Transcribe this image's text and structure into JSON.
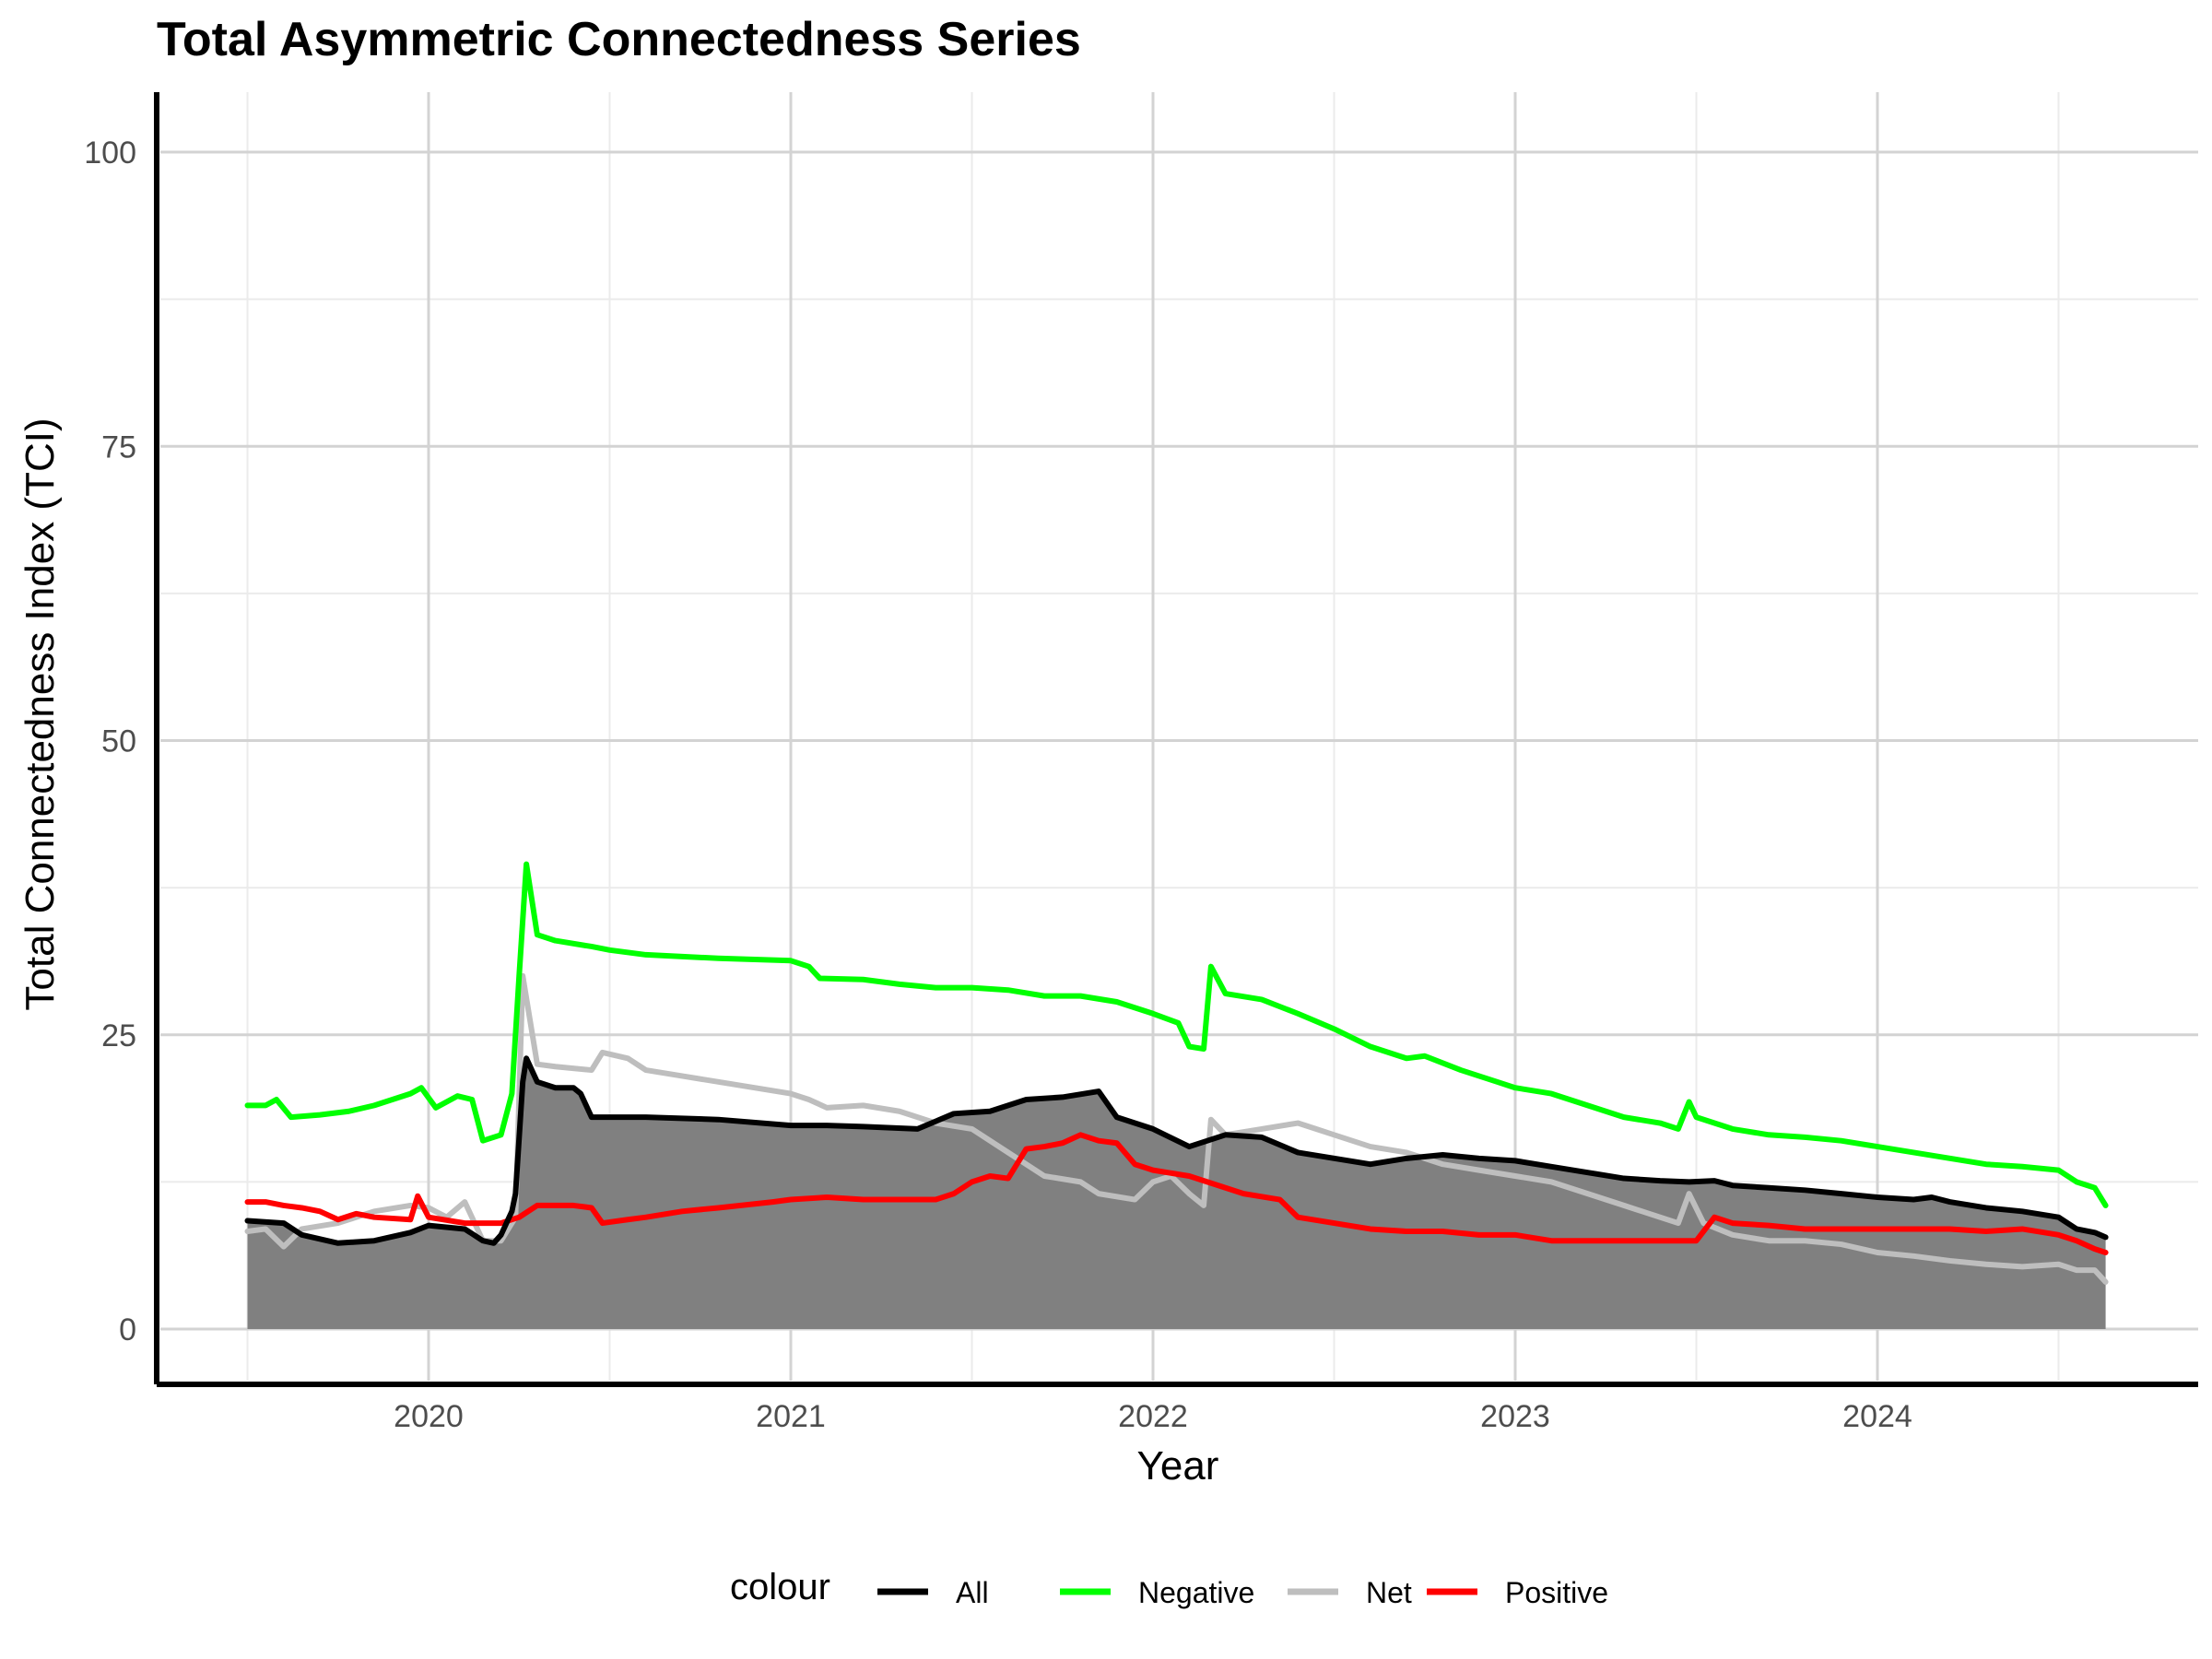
{
  "chart_data": {
    "type": "line",
    "title": "Total Asymmetric Connectedness Series",
    "xlabel": "Year",
    "ylabel": "Total Connectedness Index (TCI)",
    "xlim": [
      2019.5,
      2024.63
    ],
    "ylim": [
      0,
      100
    ],
    "xticks": [
      {
        "value": 2020,
        "label": "2020"
      },
      {
        "value": 2021,
        "label": "2021"
      },
      {
        "value": 2022,
        "label": "2022"
      },
      {
        "value": 2023,
        "label": "2023"
      },
      {
        "value": 2024,
        "label": "2024"
      }
    ],
    "yticks": [
      {
        "value": 0,
        "label": "0"
      },
      {
        "value": 25,
        "label": "25"
      },
      {
        "value": 50,
        "label": "50"
      },
      {
        "value": 75,
        "label": "75"
      },
      {
        "value": 100,
        "label": "100"
      }
    ],
    "grid": true,
    "legend": {
      "title": "colour",
      "position": "bottom"
    },
    "area_series": "All",
    "area_color": "#808080",
    "series": [
      {
        "name": "All",
        "color": "#000000",
        "points": [
          [
            2019.5,
            9.2
          ],
          [
            2019.6,
            9.0
          ],
          [
            2019.65,
            8.0
          ],
          [
            2019.75,
            7.3
          ],
          [
            2019.85,
            7.5
          ],
          [
            2019.95,
            8.2
          ],
          [
            2020.0,
            8.8
          ],
          [
            2020.1,
            8.5
          ],
          [
            2020.15,
            7.5
          ],
          [
            2020.18,
            7.3
          ],
          [
            2020.2,
            8.0
          ],
          [
            2020.23,
            10.0
          ],
          [
            2020.24,
            11.5
          ],
          [
            2020.26,
            21.0
          ],
          [
            2020.27,
            23.0
          ],
          [
            2020.3,
            21.0
          ],
          [
            2020.35,
            20.5
          ],
          [
            2020.4,
            20.5
          ],
          [
            2020.42,
            20.0
          ],
          [
            2020.45,
            18.0
          ],
          [
            2020.6,
            18.0
          ],
          [
            2020.8,
            17.8
          ],
          [
            2021.0,
            17.3
          ],
          [
            2021.1,
            17.3
          ],
          [
            2021.2,
            17.2
          ],
          [
            2021.35,
            17.0
          ],
          [
            2021.45,
            18.3
          ],
          [
            2021.55,
            18.5
          ],
          [
            2021.65,
            19.5
          ],
          [
            2021.75,
            19.7
          ],
          [
            2021.85,
            20.2
          ],
          [
            2021.9,
            18.0
          ],
          [
            2022.0,
            17.0
          ],
          [
            2022.1,
            15.5
          ],
          [
            2022.15,
            16.0
          ],
          [
            2022.2,
            16.5
          ],
          [
            2022.3,
            16.3
          ],
          [
            2022.4,
            15.0
          ],
          [
            2022.5,
            14.5
          ],
          [
            2022.6,
            14.0
          ],
          [
            2022.7,
            14.5
          ],
          [
            2022.8,
            14.8
          ],
          [
            2022.9,
            14.5
          ],
          [
            2023.0,
            14.3
          ],
          [
            2023.1,
            13.8
          ],
          [
            2023.2,
            13.3
          ],
          [
            2023.3,
            12.8
          ],
          [
            2023.4,
            12.6
          ],
          [
            2023.48,
            12.5
          ],
          [
            2023.55,
            12.6
          ],
          [
            2023.6,
            12.2
          ],
          [
            2023.7,
            12.0
          ],
          [
            2023.8,
            11.8
          ],
          [
            2023.9,
            11.5
          ],
          [
            2024.0,
            11.2
          ],
          [
            2024.1,
            11.0
          ],
          [
            2024.15,
            11.2
          ],
          [
            2024.2,
            10.8
          ],
          [
            2024.3,
            10.3
          ],
          [
            2024.4,
            10.0
          ],
          [
            2024.5,
            9.5
          ],
          [
            2024.55,
            8.5
          ],
          [
            2024.6,
            8.2
          ],
          [
            2024.63,
            7.8
          ]
        ]
      },
      {
        "name": "Negative",
        "color": "#00ff00",
        "points": [
          [
            2019.5,
            19.0
          ],
          [
            2019.55,
            19.0
          ],
          [
            2019.58,
            19.5
          ],
          [
            2019.62,
            18.0
          ],
          [
            2019.7,
            18.2
          ],
          [
            2019.78,
            18.5
          ],
          [
            2019.85,
            19.0
          ],
          [
            2019.95,
            20.0
          ],
          [
            2019.98,
            20.5
          ],
          [
            2020.02,
            18.8
          ],
          [
            2020.08,
            19.8
          ],
          [
            2020.12,
            19.5
          ],
          [
            2020.15,
            16.0
          ],
          [
            2020.2,
            16.5
          ],
          [
            2020.23,
            20.0
          ],
          [
            2020.25,
            30.0
          ],
          [
            2020.27,
            39.5
          ],
          [
            2020.3,
            33.5
          ],
          [
            2020.35,
            33.0
          ],
          [
            2020.45,
            32.5
          ],
          [
            2020.5,
            32.2
          ],
          [
            2020.6,
            31.8
          ],
          [
            2020.8,
            31.5
          ],
          [
            2021.0,
            31.3
          ],
          [
            2021.05,
            30.8
          ],
          [
            2021.08,
            29.8
          ],
          [
            2021.2,
            29.7
          ],
          [
            2021.3,
            29.3
          ],
          [
            2021.4,
            29.0
          ],
          [
            2021.5,
            29.0
          ],
          [
            2021.6,
            28.8
          ],
          [
            2021.7,
            28.3
          ],
          [
            2021.8,
            28.3
          ],
          [
            2021.9,
            27.8
          ],
          [
            2022.0,
            26.8
          ],
          [
            2022.07,
            26.0
          ],
          [
            2022.1,
            24.0
          ],
          [
            2022.14,
            23.8
          ],
          [
            2022.16,
            30.8
          ],
          [
            2022.2,
            28.5
          ],
          [
            2022.3,
            28.0
          ],
          [
            2022.4,
            26.8
          ],
          [
            2022.5,
            25.5
          ],
          [
            2022.6,
            24.0
          ],
          [
            2022.7,
            23.0
          ],
          [
            2022.75,
            23.2
          ],
          [
            2022.85,
            22.0
          ],
          [
            2022.95,
            21.0
          ],
          [
            2023.0,
            20.5
          ],
          [
            2023.1,
            20.0
          ],
          [
            2023.2,
            19.0
          ],
          [
            2023.3,
            18.0
          ],
          [
            2023.4,
            17.5
          ],
          [
            2023.45,
            17.0
          ],
          [
            2023.48,
            19.3
          ],
          [
            2023.5,
            18.0
          ],
          [
            2023.55,
            17.5
          ],
          [
            2023.6,
            17.0
          ],
          [
            2023.7,
            16.5
          ],
          [
            2023.8,
            16.3
          ],
          [
            2023.9,
            16.0
          ],
          [
            2024.0,
            15.5
          ],
          [
            2024.1,
            15.0
          ],
          [
            2024.2,
            14.5
          ],
          [
            2024.3,
            14.0
          ],
          [
            2024.4,
            13.8
          ],
          [
            2024.5,
            13.5
          ],
          [
            2024.55,
            12.5
          ],
          [
            2024.6,
            12.0
          ],
          [
            2024.63,
            10.5
          ]
        ]
      },
      {
        "name": "Net",
        "color": "#bebebe",
        "points": [
          [
            2019.5,
            8.3
          ],
          [
            2019.55,
            8.5
          ],
          [
            2019.6,
            7.0
          ],
          [
            2019.65,
            8.5
          ],
          [
            2019.75,
            9.0
          ],
          [
            2019.85,
            10.0
          ],
          [
            2019.95,
            10.5
          ],
          [
            2020.0,
            10.3
          ],
          [
            2020.05,
            9.5
          ],
          [
            2020.1,
            10.8
          ],
          [
            2020.15,
            7.5
          ],
          [
            2020.2,
            7.5
          ],
          [
            2020.24,
            9.5
          ],
          [
            2020.26,
            30.0
          ],
          [
            2020.3,
            22.5
          ],
          [
            2020.35,
            22.3
          ],
          [
            2020.45,
            22.0
          ],
          [
            2020.48,
            23.5
          ],
          [
            2020.55,
            23.0
          ],
          [
            2020.6,
            22.0
          ],
          [
            2020.7,
            21.5
          ],
          [
            2020.8,
            21.0
          ],
          [
            2021.0,
            20.0
          ],
          [
            2021.05,
            19.5
          ],
          [
            2021.1,
            18.8
          ],
          [
            2021.2,
            19.0
          ],
          [
            2021.3,
            18.5
          ],
          [
            2021.4,
            17.5
          ],
          [
            2021.5,
            17.0
          ],
          [
            2021.6,
            15.0
          ],
          [
            2021.7,
            13.0
          ],
          [
            2021.8,
            12.5
          ],
          [
            2021.85,
            11.5
          ],
          [
            2021.95,
            11.0
          ],
          [
            2022.0,
            12.5
          ],
          [
            2022.05,
            13.0
          ],
          [
            2022.1,
            11.5
          ],
          [
            2022.14,
            10.5
          ],
          [
            2022.16,
            17.8
          ],
          [
            2022.2,
            16.5
          ],
          [
            2022.3,
            17.0
          ],
          [
            2022.4,
            17.5
          ],
          [
            2022.45,
            17.0
          ],
          [
            2022.5,
            16.5
          ],
          [
            2022.6,
            15.5
          ],
          [
            2022.7,
            15.0
          ],
          [
            2022.8,
            14.0
          ],
          [
            2022.9,
            13.5
          ],
          [
            2023.0,
            13.0
          ],
          [
            2023.1,
            12.5
          ],
          [
            2023.2,
            11.5
          ],
          [
            2023.3,
            10.5
          ],
          [
            2023.4,
            9.5
          ],
          [
            2023.45,
            9.0
          ],
          [
            2023.48,
            11.5
          ],
          [
            2023.52,
            9.0
          ],
          [
            2023.6,
            8.0
          ],
          [
            2023.7,
            7.5
          ],
          [
            2023.8,
            7.5
          ],
          [
            2023.9,
            7.2
          ],
          [
            2024.0,
            6.5
          ],
          [
            2024.1,
            6.2
          ],
          [
            2024.2,
            5.8
          ],
          [
            2024.3,
            5.5
          ],
          [
            2024.4,
            5.3
          ],
          [
            2024.5,
            5.5
          ],
          [
            2024.55,
            5.0
          ],
          [
            2024.6,
            5.0
          ],
          [
            2024.63,
            4.0
          ]
        ]
      },
      {
        "name": "Positive",
        "color": "#ff0000",
        "points": [
          [
            2019.5,
            10.8
          ],
          [
            2019.55,
            10.8
          ],
          [
            2019.6,
            10.5
          ],
          [
            2019.65,
            10.3
          ],
          [
            2019.7,
            10.0
          ],
          [
            2019.75,
            9.3
          ],
          [
            2019.8,
            9.8
          ],
          [
            2019.85,
            9.5
          ],
          [
            2019.95,
            9.3
          ],
          [
            2019.97,
            11.3
          ],
          [
            2020.0,
            9.5
          ],
          [
            2020.1,
            9.0
          ],
          [
            2020.2,
            9.0
          ],
          [
            2020.25,
            9.5
          ],
          [
            2020.3,
            10.5
          ],
          [
            2020.4,
            10.5
          ],
          [
            2020.45,
            10.3
          ],
          [
            2020.48,
            9.0
          ],
          [
            2020.55,
            9.3
          ],
          [
            2020.6,
            9.5
          ],
          [
            2020.7,
            10.0
          ],
          [
            2020.8,
            10.3
          ],
          [
            2020.95,
            10.8
          ],
          [
            2021.0,
            11.0
          ],
          [
            2021.1,
            11.2
          ],
          [
            2021.2,
            11.0
          ],
          [
            2021.3,
            11.0
          ],
          [
            2021.4,
            11.0
          ],
          [
            2021.45,
            11.5
          ],
          [
            2021.5,
            12.5
          ],
          [
            2021.55,
            13.0
          ],
          [
            2021.6,
            12.8
          ],
          [
            2021.65,
            15.3
          ],
          [
            2021.7,
            15.5
          ],
          [
            2021.75,
            15.8
          ],
          [
            2021.8,
            16.5
          ],
          [
            2021.85,
            16.0
          ],
          [
            2021.9,
            15.8
          ],
          [
            2021.95,
            14.0
          ],
          [
            2022.0,
            13.5
          ],
          [
            2022.1,
            13.0
          ],
          [
            2022.15,
            12.5
          ],
          [
            2022.2,
            12.0
          ],
          [
            2022.25,
            11.5
          ],
          [
            2022.35,
            11.0
          ],
          [
            2022.4,
            9.5
          ],
          [
            2022.5,
            9.0
          ],
          [
            2022.6,
            8.5
          ],
          [
            2022.7,
            8.3
          ],
          [
            2022.8,
            8.3
          ],
          [
            2022.9,
            8.0
          ],
          [
            2023.0,
            8.0
          ],
          [
            2023.1,
            7.5
          ],
          [
            2023.2,
            7.5
          ],
          [
            2023.3,
            7.5
          ],
          [
            2023.4,
            7.5
          ],
          [
            2023.5,
            7.5
          ],
          [
            2023.55,
            9.5
          ],
          [
            2023.6,
            9.0
          ],
          [
            2023.7,
            8.8
          ],
          [
            2023.8,
            8.5
          ],
          [
            2023.9,
            8.5
          ],
          [
            2024.0,
            8.5
          ],
          [
            2024.1,
            8.5
          ],
          [
            2024.2,
            8.5
          ],
          [
            2024.3,
            8.3
          ],
          [
            2024.4,
            8.5
          ],
          [
            2024.5,
            8.0
          ],
          [
            2024.55,
            7.5
          ],
          [
            2024.6,
            6.8
          ],
          [
            2024.63,
            6.5
          ]
        ]
      }
    ]
  }
}
